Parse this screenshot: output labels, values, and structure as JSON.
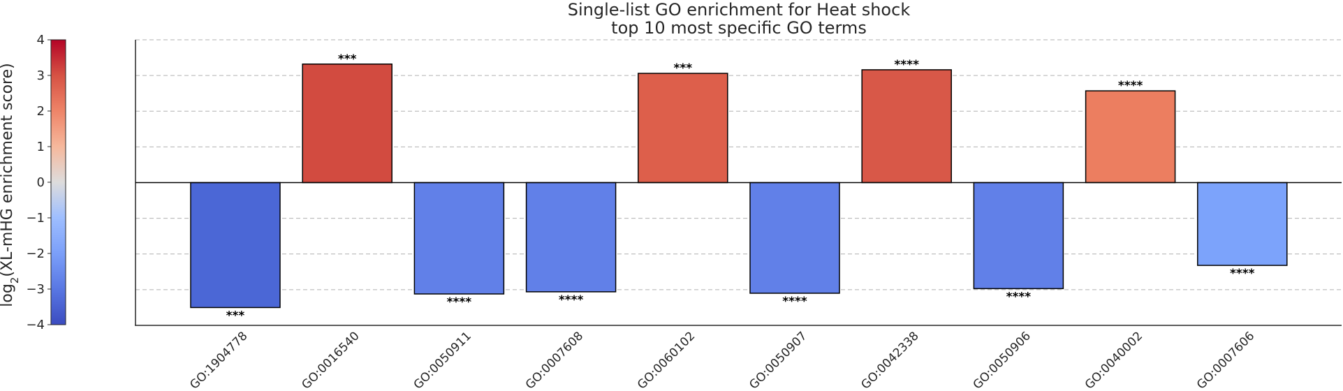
{
  "chart_data": {
    "type": "bar",
    "title": "Single-list GO enrichment for Heat shock",
    "subtitle": "top 10 most specific GO terms",
    "ylabel_prefix": "log",
    "ylabel_sub": "2",
    "ylabel_suffix": "(XL-mHG enrichment score)",
    "ylim": [
      -4,
      4
    ],
    "yticks": [
      4,
      3,
      2,
      1,
      0,
      -1,
      -2,
      -3,
      -4
    ],
    "ytick_labels": [
      "4",
      "3",
      "2",
      "1",
      "0",
      "−1",
      "−2",
      "−3",
      "−4"
    ],
    "grid": true,
    "categories": [
      "GO:1904778",
      "GO:0016540",
      "GO:0050911",
      "GO:0007608",
      "GO:0060102",
      "GO:0050907",
      "GO:0042338",
      "GO:0050906",
      "GO:0040002",
      "GO:0007606"
    ],
    "values": [
      -3.5,
      3.32,
      -3.12,
      -3.06,
      3.06,
      -3.1,
      3.16,
      -2.97,
      2.57,
      -2.32
    ],
    "significance": [
      "***",
      "***",
      "****",
      "****",
      "***",
      "****",
      "****",
      "****",
      "****",
      "****"
    ],
    "colors": [
      "#4b67d6",
      "#d24b40",
      "#6180e8",
      "#6180e8",
      "#dd5f4b",
      "#6180e8",
      "#d85848",
      "#6180e8",
      "#ec7e60",
      "#7ca3fb"
    ],
    "colorbar": {
      "cmap": "coolwarm",
      "range": [
        -4,
        4
      ],
      "ticks": [
        4,
        3,
        2,
        1,
        0,
        -1,
        -2,
        -3,
        -4
      ],
      "tick_labels": [
        "4",
        "3",
        "2",
        "1",
        "0",
        "−1",
        "−2",
        "−3",
        "−4"
      ]
    }
  }
}
